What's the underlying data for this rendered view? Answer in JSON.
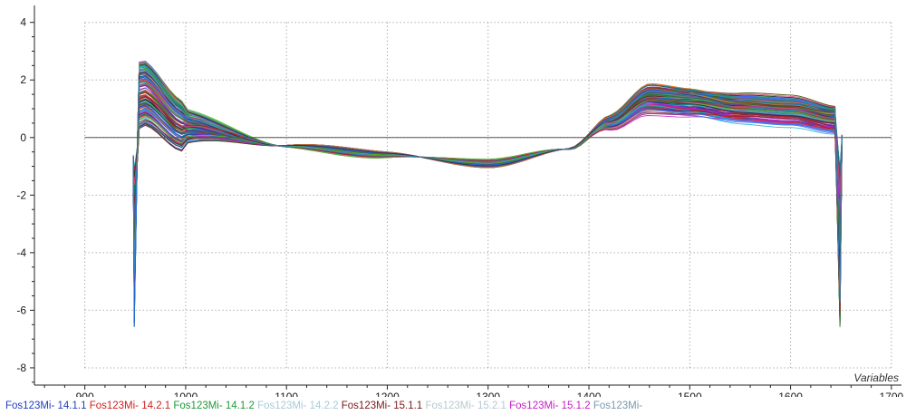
{
  "chart_data": {
    "type": "line",
    "xlabel": "Variables",
    "ylabel": "",
    "xlim": [
      850,
      1710
    ],
    "ylim": [
      -8.6,
      4.4
    ],
    "x_ticks": [
      900,
      1000,
      1100,
      1200,
      1300,
      1400,
      1500,
      1600,
      1700
    ],
    "y_ticks": [
      4,
      2,
      0,
      -2,
      -4,
      -6,
      -8
    ],
    "grid": "dotted",
    "zero_line": true,
    "series_count": 140,
    "x_range": [
      950,
      1650
    ],
    "profile_points": [
      [
        950,
        0.5
      ],
      [
        955,
        1.6
      ],
      [
        1000,
        0.4
      ],
      [
        1100,
        -0.3
      ],
      [
        1200,
        -0.6
      ],
      [
        1300,
        -0.9
      ],
      [
        1380,
        -0.4
      ],
      [
        1420,
        0.5
      ],
      [
        1460,
        1.3
      ],
      [
        1500,
        1.2
      ],
      [
        1550,
        1.0
      ],
      [
        1600,
        0.9
      ],
      [
        1645,
        0.6
      ],
      [
        1650,
        0.4
      ]
    ],
    "edge_dip_min": -6.6,
    "legend_position": "bottom",
    "legend": [
      {
        "label": "Fos123Mi- 14.1.1",
        "color": "#1f3fbf"
      },
      {
        "label": "Fos123Mi- 14.2.1",
        "color": "#cc2222"
      },
      {
        "label": "Fos123Mi- 14.1.2",
        "color": "#1f9a3a"
      },
      {
        "label": "Fos123Mi- 14.2.2",
        "color": "#a7cbd8"
      },
      {
        "label": "Fos123Mi- 15.1.1",
        "color": "#7a1a1a"
      },
      {
        "label": "Fos123Mi- 15.2.1",
        "color": "#b8c8d0"
      },
      {
        "label": "Fos123Mi- 15.1.2",
        "color": "#c420c4"
      },
      {
        "label": "Fos123Mi-",
        "color": "#7a9ab0"
      }
    ],
    "palette": [
      "#1f3fbf",
      "#cc2222",
      "#1f9a3a",
      "#19b8c9",
      "#7a1a1a",
      "#c420c4",
      "#2b2b9a",
      "#0f7f7f",
      "#9a9a9a",
      "#e07020",
      "#4060ff",
      "#20a080",
      "#8a3ab0",
      "#406020",
      "#d04070",
      "#1a6ad0",
      "#50c030",
      "#303030",
      "#b02020",
      "#2a8acb"
    ]
  }
}
